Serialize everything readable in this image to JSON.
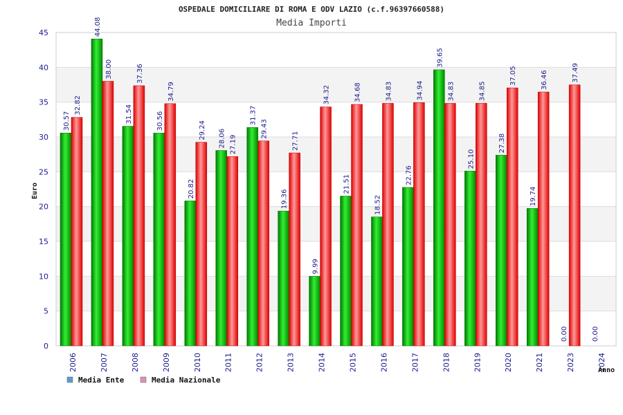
{
  "chart_data": {
    "type": "bar",
    "title": "OSPEDALE DOMICILIARE DI ROMA E ODV LAZIO (c.f.96397660588)",
    "subtitle": "Media Importi",
    "xlabel": "Anno",
    "ylabel": "Euro",
    "ylim": [
      0,
      45
    ],
    "yticks": [
      0,
      5,
      10,
      15,
      20,
      25,
      30,
      35,
      40,
      45
    ],
    "grid": true,
    "legend_position": "bottom-left",
    "categories": [
      "2006",
      "2007",
      "2008",
      "2009",
      "2010",
      "2011",
      "2012",
      "2013",
      "2014",
      "2015",
      "2016",
      "2017",
      "2018",
      "2019",
      "2020",
      "2021",
      "2023",
      "2024"
    ],
    "series": [
      {
        "name": "Media Ente",
        "color": "#00b000",
        "legend_color": "#5b9bd5",
        "values": [
          30.57,
          44.08,
          31.54,
          30.56,
          20.82,
          28.06,
          31.37,
          19.36,
          9.99,
          21.51,
          18.52,
          22.76,
          39.65,
          25.1,
          27.38,
          19.74,
          0,
          0
        ],
        "labels": [
          "30.57",
          "44.08",
          "31.54",
          "30.56",
          "20.82",
          "28.06",
          "31.37",
          "19.36",
          "9.99",
          "21.51",
          "18.52",
          "22.76",
          "39.65",
          "25.10",
          "27.38",
          "19.74",
          "0.00",
          "0.00"
        ]
      },
      {
        "name": "Media Nazionale",
        "color": "#ff2020",
        "legend_color": "#e090b0",
        "values": [
          32.82,
          38.0,
          37.36,
          34.79,
          29.24,
          27.19,
          29.43,
          27.71,
          34.32,
          34.68,
          34.83,
          34.94,
          34.83,
          34.85,
          37.05,
          36.46,
          37.49,
          null
        ],
        "labels": [
          "32.82",
          "38.00",
          "37.36",
          "34.79",
          "29.24",
          "27.19",
          "29.43",
          "27.71",
          "34.32",
          "34.68",
          "34.83",
          "34.94",
          "34.83",
          "34.85",
          "37.05",
          "36.46",
          "37.49",
          ""
        ]
      }
    ]
  }
}
